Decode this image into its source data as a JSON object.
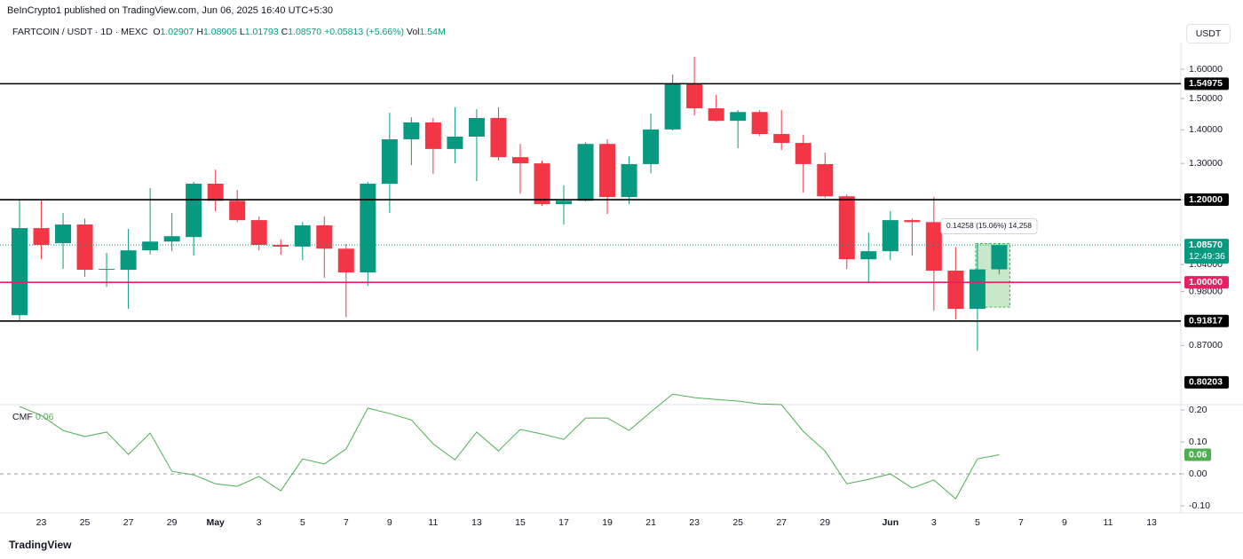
{
  "header": {
    "publisher": "BeInCrypto1 published on TradingView.com, Jun 06, 2025 16:40 UTC+5:30",
    "symbol": "FARTCOIN / USDT · 1D · MEXC",
    "open_label": "O",
    "open": "1.02907",
    "high_label": "H",
    "high": "1.08905",
    "low_label": "L",
    "low": "1.01793",
    "close_label": "C",
    "close": "1.08570",
    "change": "+0.05813 (+5.66%)",
    "volume_label": "Vol",
    "volume": "1.54M",
    "currency": "USDT",
    "footer": "TradingView"
  },
  "chart_data": [
    {
      "type": "candlestick",
      "categories": [
        null,
        "23",
        null,
        "25",
        null,
        "27",
        null,
        "29",
        null,
        "May",
        null,
        "3",
        null,
        "5",
        null,
        "7",
        null,
        "9",
        null,
        "11",
        null,
        "13",
        null,
        "15",
        null,
        "17",
        null,
        "19",
        null,
        "21",
        null,
        "23",
        null,
        "25",
        null,
        "27",
        null,
        "29",
        null,
        null,
        "Jun",
        null,
        "3",
        null,
        "5",
        null,
        "7",
        null,
        "9",
        null,
        "11",
        null,
        "13"
      ],
      "open": [
        0.93,
        1.127,
        1.09,
        1.136,
        1.028,
        1.028,
        1.073,
        1.094,
        1.105,
        1.243,
        1.197,
        1.147,
        1.086,
        1.082,
        1.134,
        1.077,
        1.022,
        1.243,
        1.371,
        1.423,
        1.342,
        1.379,
        1.437,
        1.318,
        1.3,
        1.188,
        1.197,
        1.357,
        1.207,
        1.298,
        1.401,
        1.551,
        1.468,
        1.428,
        1.456,
        1.387,
        1.36,
        1.298,
        1.209,
        1.052,
        1.071,
        1.147,
        1.142,
        1.026,
        0.943,
        1.02907,
        null,
        null,
        null,
        null,
        null,
        null,
        null
      ],
      "high": [
        1.2,
        1.2,
        1.165,
        1.151,
        1.067,
        1.125,
        1.231,
        1.165,
        1.248,
        1.282,
        1.226,
        1.156,
        1.099,
        1.142,
        1.156,
        1.088,
        1.248,
        1.454,
        1.439,
        1.437,
        1.471,
        1.465,
        1.471,
        1.357,
        1.308,
        1.238,
        1.362,
        1.371,
        1.32,
        1.451,
        1.581,
        1.645,
        1.512,
        1.462,
        1.462,
        1.462,
        1.384,
        1.331,
        1.214,
        1.116,
        1.17,
        1.151,
        1.207,
        1.081,
        1.088,
        1.08905,
        null,
        null,
        null,
        null,
        null,
        null,
        null
      ],
      "low": [
        0.918,
        1.052,
        1.03,
        1.012,
        0.99,
        0.943,
        1.063,
        1.071,
        1.061,
        1.17,
        1.142,
        1.073,
        1.063,
        1.05,
        1.01,
        0.926,
        0.992,
        1.165,
        1.295,
        1.27,
        1.3,
        1.25,
        1.308,
        1.216,
        1.184,
        1.136,
        1.195,
        1.163,
        1.188,
        1.272,
        1.398,
        1.445,
        1.426,
        1.344,
        1.381,
        1.339,
        1.219,
        1.205,
        1.03,
        1.0,
        1.05,
        1.061,
        0.939,
        0.921,
        0.86,
        1.01793,
        null,
        null,
        null,
        null,
        null,
        null,
        null
      ],
      "close": [
        1.127,
        1.086,
        1.136,
        1.028,
        1.03,
        1.073,
        1.094,
        1.107,
        1.243,
        1.197,
        1.147,
        1.086,
        1.082,
        1.134,
        1.077,
        1.022,
        1.243,
        1.371,
        1.423,
        1.342,
        1.379,
        1.437,
        1.318,
        1.3,
        1.188,
        1.197,
        1.357,
        1.207,
        1.298,
        1.401,
        1.551,
        1.468,
        1.428,
        1.456,
        1.387,
        1.36,
        1.298,
        1.209,
        1.052,
        1.071,
        1.147,
        1.142,
        1.026,
        0.943,
        1.029,
        1.0857,
        null,
        null,
        null,
        null,
        null,
        null,
        null
      ],
      "up_color": "#089981",
      "down_color": "#f23645",
      "log_scale": true,
      "ylim": [
        0.765,
        1.697
      ],
      "yticks": [
        {
          "value": 1.6,
          "label": "1.60000"
        },
        {
          "value": 1.5,
          "label": "1.50000"
        },
        {
          "value": 1.4,
          "label": "1.40000"
        },
        {
          "value": 1.3,
          "label": "1.30000"
        },
        {
          "value": 1.2,
          "label": "1.20000"
        },
        {
          "value": 1.04,
          "label": "1.04000"
        },
        {
          "value": 0.98,
          "label": "0.98000"
        },
        {
          "value": 0.87,
          "label": "0.87000"
        }
      ],
      "levels": [
        {
          "value": 1.54975,
          "label": "1.54975",
          "color": "#000000"
        },
        {
          "value": 1.2,
          "label": "1.20000",
          "color": "#000000"
        },
        {
          "value": 1.0,
          "label": "1.00000",
          "color": "#e91e63"
        },
        {
          "value": 0.91817,
          "label": "0.91817",
          "color": "#000000"
        }
      ],
      "last_price": {
        "value": 1.0857,
        "label": "1.08570",
        "countdown": "12:49:36",
        "color": "#089981"
      },
      "range_low": {
        "value": 0.80203,
        "label": "0.80203"
      },
      "measure": {
        "low": 0.9467,
        "high": 1.0893,
        "text": "0.14258 (15.06%) 14,258",
        "color": "#4caf50"
      }
    },
    {
      "type": "line",
      "title": "CMF",
      "value_label": "0.06",
      "color": "#4caf50",
      "values": [
        0.211,
        0.183,
        0.136,
        0.117,
        0.131,
        0.061,
        0.128,
        0.008,
        -0.003,
        -0.031,
        -0.039,
        -0.008,
        -0.053,
        0.047,
        0.031,
        0.078,
        0.206,
        0.189,
        0.169,
        0.094,
        0.044,
        0.131,
        0.072,
        0.139,
        0.125,
        0.108,
        0.175,
        0.175,
        0.136,
        0.194,
        0.25,
        0.239,
        0.233,
        0.228,
        0.219,
        0.217,
        0.133,
        0.072,
        -0.031,
        -0.017,
        0.0,
        -0.044,
        -0.019,
        -0.078,
        0.047,
        0.06,
        null,
        null,
        null,
        null,
        null,
        null,
        null
      ],
      "ylim": [
        -0.122,
        0.217
      ],
      "yticks": [
        {
          "value": 0.2,
          "label": "0.20"
        },
        {
          "value": 0.1,
          "label": "0.10"
        },
        {
          "value": 0,
          "label": "0.00"
        },
        {
          "value": -0.1,
          "label": "-0.10"
        }
      ]
    }
  ]
}
